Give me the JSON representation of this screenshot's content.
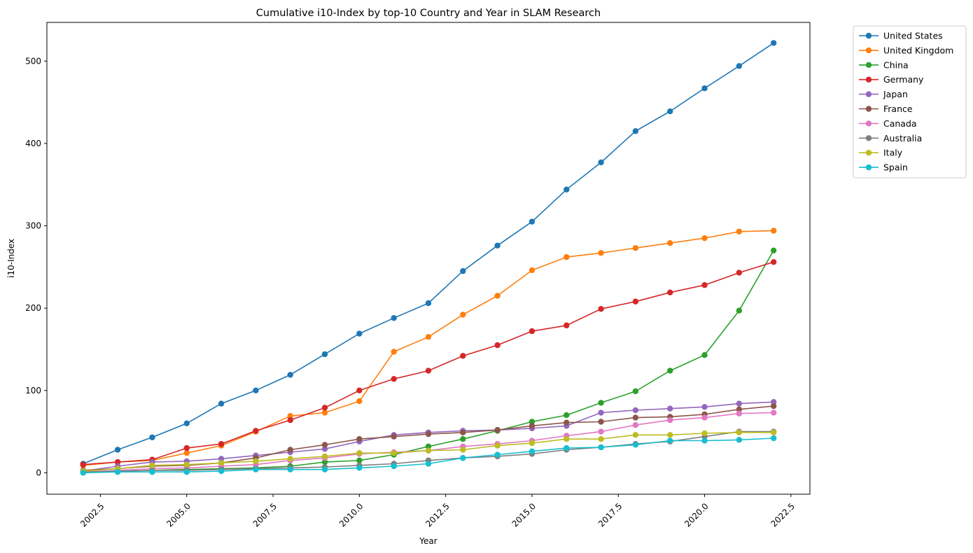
{
  "chart_data": {
    "type": "line",
    "title": "Cumulative i10-Index by top-10 Country and Year in SLAM Research",
    "xlabel": "Year",
    "ylabel": "i10-Index",
    "xlim": [
      2000.95,
      2023.05
    ],
    "ylim": [
      -26,
      547
    ],
    "x_ticks": [
      2002.5,
      2005.0,
      2007.5,
      2010.0,
      2012.5,
      2015.0,
      2017.5,
      2020.0,
      2022.5
    ],
    "x_tick_labels": [
      "2002.5",
      "2005.0",
      "2007.5",
      "2010.0",
      "2012.5",
      "2015.0",
      "2017.5",
      "2020.0",
      "2022.5"
    ],
    "y_ticks": [
      0,
      100,
      200,
      300,
      400,
      500
    ],
    "y_tick_labels": [
      "0",
      "100",
      "200",
      "300",
      "400",
      "500"
    ],
    "grid": false,
    "legend_position": "outside-top-right",
    "x": [
      2002,
      2003,
      2004,
      2005,
      2006,
      2007,
      2008,
      2009,
      2010,
      2011,
      2012,
      2013,
      2014,
      2015,
      2016,
      2017,
      2018,
      2019,
      2020,
      2021,
      2022
    ],
    "series": [
      {
        "name": "United States",
        "color": "#1f77b4",
        "values": [
          11,
          28,
          43,
          60,
          84,
          100,
          119,
          144,
          169,
          188,
          206,
          245,
          276,
          305,
          344,
          377,
          415,
          439,
          467,
          494,
          522
        ]
      },
      {
        "name": "United Kingdom",
        "color": "#ff7f0e",
        "values": [
          9,
          13,
          15,
          24,
          33,
          50,
          69,
          73,
          87,
          147,
          165,
          192,
          215,
          246,
          262,
          267,
          273,
          279,
          285,
          293,
          294
        ]
      },
      {
        "name": "China",
        "color": "#2ca02c",
        "values": [
          1,
          2,
          3,
          4,
          5,
          6,
          8,
          13,
          15,
          22,
          32,
          41,
          51,
          62,
          70,
          85,
          99,
          124,
          143,
          197,
          270
        ]
      },
      {
        "name": "Germany",
        "color": "#d62728",
        "values": [
          10,
          13,
          16,
          30,
          35,
          51,
          64,
          79,
          100,
          114,
          124,
          142,
          155,
          172,
          179,
          199,
          208,
          219,
          228,
          243,
          256
        ]
      },
      {
        "name": "Japan",
        "color": "#9467bd",
        "values": [
          2,
          8,
          13,
          14,
          17,
          21,
          25,
          29,
          38,
          46,
          49,
          51,
          52,
          54,
          57,
          73,
          76,
          78,
          80,
          84,
          86
        ]
      },
      {
        "name": "France",
        "color": "#8c564b",
        "values": [
          3,
          5,
          8,
          9,
          12,
          18,
          28,
          34,
          41,
          44,
          47,
          49,
          52,
          57,
          61,
          62,
          67,
          68,
          71,
          77,
          81
        ]
      },
      {
        "name": "Canada",
        "color": "#e377c2",
        "values": [
          1,
          3,
          5,
          6,
          8,
          10,
          15,
          18,
          23,
          25,
          27,
          32,
          35,
          39,
          45,
          50,
          58,
          64,
          67,
          72,
          73
        ]
      },
      {
        "name": "Australia",
        "color": "#7f7f7f",
        "values": [
          1,
          2,
          3,
          3,
          4,
          5,
          6,
          7,
          9,
          11,
          15,
          18,
          20,
          23,
          28,
          31,
          35,
          38,
          44,
          50,
          50
        ]
      },
      {
        "name": "Italy",
        "color": "#bcbd22",
        "values": [
          2,
          5,
          9,
          10,
          12,
          14,
          17,
          20,
          24,
          24,
          27,
          28,
          33,
          36,
          41,
          41,
          46,
          46,
          48,
          49,
          49
        ]
      },
      {
        "name": "Spain",
        "color": "#17becf",
        "values": [
          0,
          1,
          1,
          1,
          2,
          4,
          4,
          4,
          6,
          8,
          11,
          18,
          22,
          26,
          30,
          31,
          34,
          39,
          39,
          40,
          42
        ]
      }
    ]
  }
}
